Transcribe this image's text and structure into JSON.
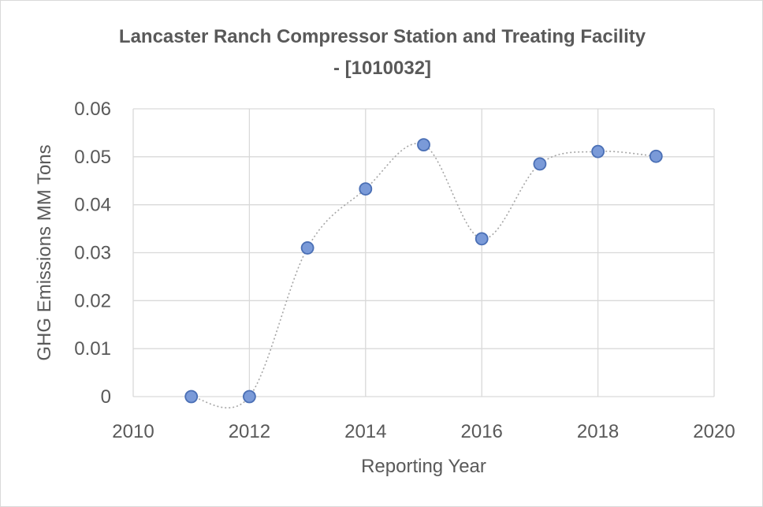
{
  "chart_data": {
    "type": "scatter",
    "title_line1": "Lancaster Ranch Compressor Station and Treating Facility",
    "title_line2": "- [1010032]",
    "xlabel": "Reporting Year",
    "ylabel": "GHG Emissions MM Tons",
    "xlim": [
      2010,
      2020
    ],
    "ylim": [
      0,
      0.06
    ],
    "xticks": [
      2010,
      2012,
      2014,
      2016,
      2018,
      2020
    ],
    "yticks": [
      0,
      0.01,
      0.02,
      0.03,
      0.04,
      0.05,
      0.06
    ],
    "grid": true,
    "smoothed_line": true,
    "x": [
      2011,
      2012,
      2013,
      2014,
      2015,
      2016,
      2017,
      2018,
      2019
    ],
    "y": [
      0,
      0,
      0.031,
      0.0433,
      0.0525,
      0.0329,
      0.0485,
      0.0511,
      0.0501
    ],
    "marker_color": "#7a9ad8",
    "marker_edge_color": "#4a6fb5",
    "line_color": "#a6a6a6",
    "grid_color": "#d9d9d9"
  }
}
